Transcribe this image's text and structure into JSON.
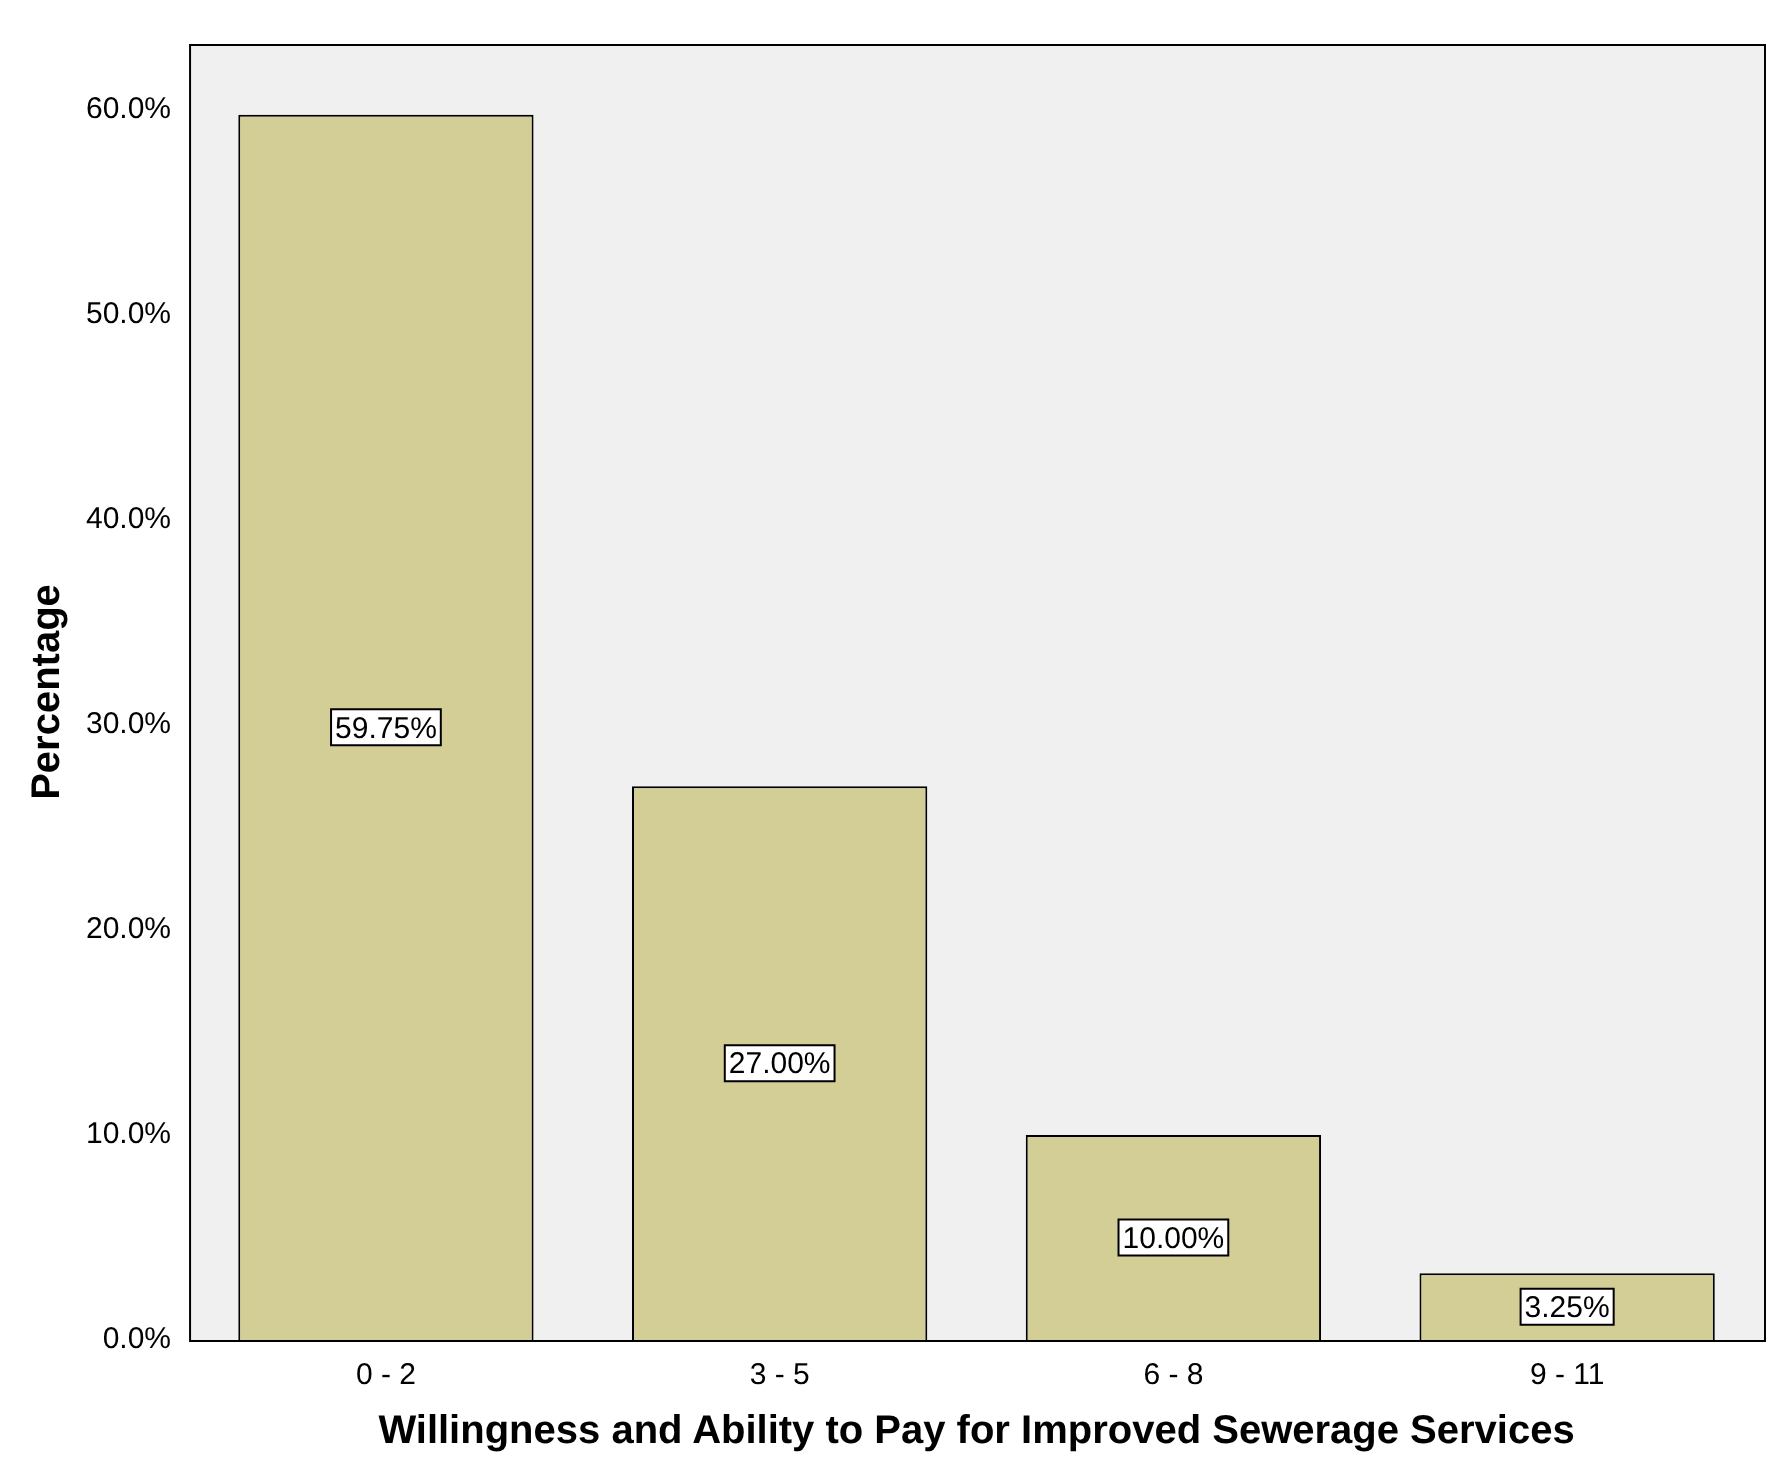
{
  "chart_data": {
    "type": "bar",
    "xlabel": "Willingness and Ability to Pay for Improved Sewerage Services",
    "ylabel": "Percentage",
    "categories": [
      "0 - 2",
      "3 - 5",
      "6 - 8",
      "9 - 11"
    ],
    "values": [
      59.75,
      27.0,
      10.0,
      3.25
    ],
    "color": "#d3cd96",
    "value_labels": [
      "59.75%",
      "27.00%",
      "10.00%",
      "3.25%"
    ],
    "ylim": [
      0,
      63.2
    ],
    "yticks": [
      {
        "value": 0,
        "label": "0.0%"
      },
      {
        "value": 10,
        "label": "10.0%"
      },
      {
        "value": 20,
        "label": "20.0%"
      },
      {
        "value": 30,
        "label": "30.0%"
      },
      {
        "value": 40,
        "label": "40.0%"
      },
      {
        "value": 50,
        "label": "50.0%"
      },
      {
        "value": 60,
        "label": "60.0%"
      }
    ],
    "grid": false,
    "legend": false
  }
}
